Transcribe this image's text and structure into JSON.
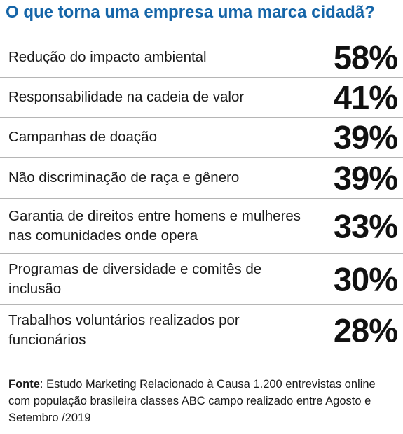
{
  "title": "O que torna uma empresa uma marca cidadã?",
  "colors": {
    "title": "#1565a8",
    "divider": "#b5b5b5",
    "text": "#1a1a1a"
  },
  "source": {
    "label": "Fonte",
    "text": ": Estudo Marketing Relacionado à Causa 1.200 entrevistas online com população brasileira classes ABC campo realizado entre Agosto e Setembro /2019"
  },
  "chart_data": {
    "type": "table",
    "title": "O que torna uma empresa uma marca cidadã?",
    "columns": [
      "",
      ""
    ],
    "rows": [
      {
        "label": "Redução do impacto ambiental",
        "value": 58,
        "display": "58%"
      },
      {
        "label": "Responsabilidade na cadeia de valor",
        "value": 41,
        "display": "41%"
      },
      {
        "label": "Campanhas de doação",
        "value": 39,
        "display": "39%"
      },
      {
        "label": "Não discriminação de raça e gênero",
        "value": 39,
        "display": "39%"
      },
      {
        "label": "Garantia de direitos entre homens e mulheres nas comunidades onde opera",
        "value": 33,
        "display": "33%"
      },
      {
        "label": "Programas de diversidade e comitês de inclusão",
        "value": 30,
        "display": "30%"
      },
      {
        "label": "Trabalhos voluntários realizados por funcionários",
        "value": 28,
        "display": "28%"
      }
    ]
  }
}
